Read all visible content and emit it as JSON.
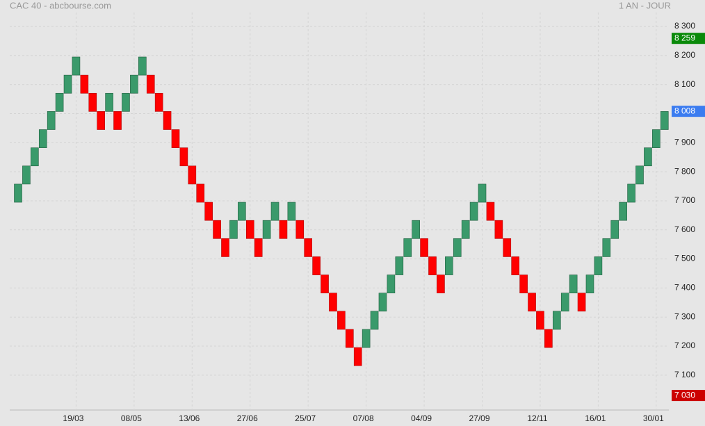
{
  "chart_data": {
    "type": "renko",
    "title": "CAC 40 - abcbourse.com",
    "subtitle": "1 AN - JOUR",
    "categories": [
      null,
      null,
      null,
      null,
      null,
      null,
      null,
      "19/03",
      null,
      null,
      null,
      null,
      null,
      null,
      "08/05",
      null,
      null,
      null,
      null,
      null,
      null,
      "13/06",
      null,
      null,
      null,
      null,
      null,
      null,
      "27/06",
      null,
      null,
      null,
      null,
      null,
      null,
      "25/07",
      null,
      null,
      null,
      null,
      null,
      null,
      "07/08",
      null,
      null,
      null,
      null,
      null,
      null,
      "04/09",
      null,
      null,
      null,
      null,
      null,
      null,
      "27/09",
      null,
      null,
      null,
      null,
      null,
      null,
      "12/11",
      null,
      null,
      null,
      null,
      null,
      null,
      "16/01",
      null,
      null,
      null,
      null,
      null,
      null,
      "30/01",
      null
    ],
    "open": [
      7695,
      7757.5,
      7820,
      7882.5,
      7945,
      8007.5,
      8070,
      8132.5,
      8132.5,
      8070,
      8007.5,
      8007.5,
      8007.5,
      8007.5,
      8070,
      8132.5,
      8132.5,
      8070,
      8007.5,
      7945,
      7882.5,
      7820,
      7757.5,
      7695,
      7632.5,
      7570,
      7570,
      7632.5,
      7632.5,
      7570,
      7570,
      7632.5,
      7632.5,
      7632.5,
      7632.5,
      7570,
      7507.5,
      7445,
      7382.5,
      7320,
      7257.5,
      7195,
      7195,
      7257.5,
      7320,
      7382.5,
      7445,
      7507.5,
      7570,
      7570,
      7507.5,
      7445,
      7445,
      7507.5,
      7570,
      7632.5,
      7695,
      7695,
      7632.5,
      7570,
      7507.5,
      7445,
      7382.5,
      7320,
      7257.5,
      7257.5,
      7320,
      7382.5,
      7382.5,
      7382.5,
      7445,
      7507.5,
      7570,
      7632.5,
      7695,
      7757.5,
      7820,
      7882.5,
      7945
    ],
    "close": [
      7757.5,
      7820,
      7882.5,
      7945,
      8007.5,
      8070,
      8132.5,
      8195,
      8070,
      8007.5,
      7945,
      8070,
      7945,
      8070,
      8132.5,
      8195,
      8070,
      8007.5,
      7945,
      7882.5,
      7820,
      7757.5,
      7695,
      7632.5,
      7570,
      7507.5,
      7632.5,
      7695,
      7570,
      7507.5,
      7632.5,
      7695,
      7570,
      7695,
      7570,
      7507.5,
      7445,
      7382.5,
      7320,
      7257.5,
      7195,
      7132.5,
      7257.5,
      7320,
      7382.5,
      7445,
      7507.5,
      7570,
      7632.5,
      7507.5,
      7445,
      7382.5,
      7507.5,
      7570,
      7632.5,
      7695,
      7757.5,
      7632.5,
      7570,
      7507.5,
      7445,
      7382.5,
      7320,
      7257.5,
      7195,
      7320,
      7382.5,
      7445,
      7320,
      7445,
      7507.5,
      7570,
      7632.5,
      7695,
      7757.5,
      7820,
      7882.5,
      7945,
      8007.5
    ],
    "up_color": "#3a9a6b",
    "down_color": "#ff0000",
    "ylim": [
      6980,
      8348
    ],
    "yticks": [
      {
        "value": 7100,
        "label": "7 100"
      },
      {
        "value": 7200,
        "label": "7 200"
      },
      {
        "value": 7300,
        "label": "7 300"
      },
      {
        "value": 7400,
        "label": "7 400"
      },
      {
        "value": 7500,
        "label": "7 500"
      },
      {
        "value": 7600,
        "label": "7 600"
      },
      {
        "value": 7700,
        "label": "7 700"
      },
      {
        "value": 7800,
        "label": "7 800"
      },
      {
        "value": 7900,
        "label": "7 900"
      },
      {
        "value": 8000,
        "label": "8 000"
      },
      {
        "value": 8100,
        "label": "8 100"
      },
      {
        "value": 8200,
        "label": "8 200"
      },
      {
        "value": 8300,
        "label": "8 300"
      }
    ],
    "grid": true,
    "price_tags": [
      {
        "value": 8259,
        "label": "8 259",
        "color": "#0a8a0a"
      },
      {
        "value": 8008,
        "label": "8 008",
        "color": "#3b7cf0"
      },
      {
        "value": 7030,
        "label": "7 030",
        "color": "#cc0000"
      }
    ]
  }
}
